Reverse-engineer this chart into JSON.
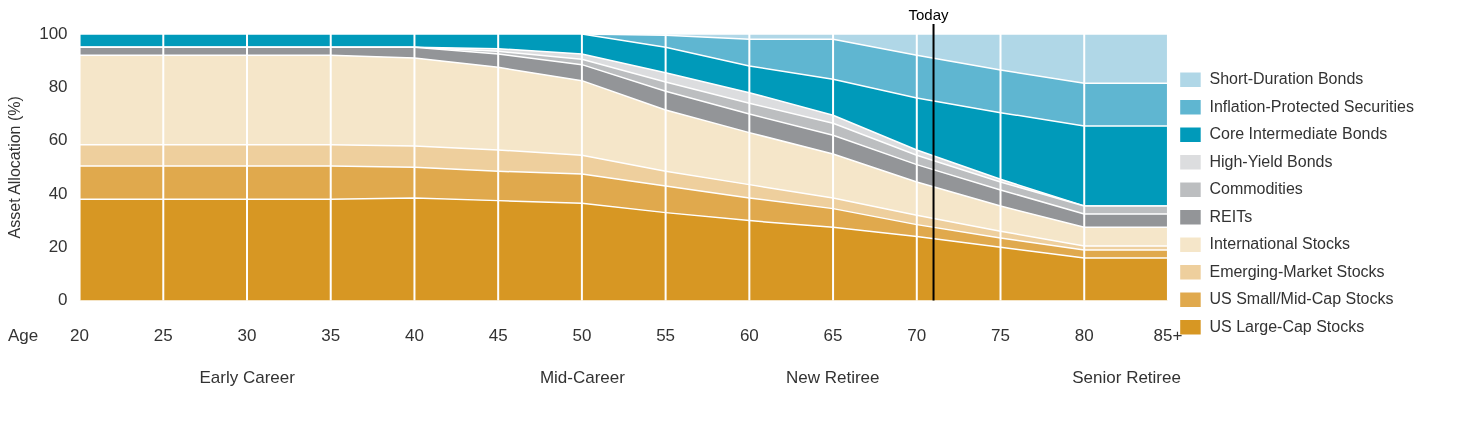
{
  "chart_data": {
    "type": "area",
    "stacked": true,
    "xlabel": "Age",
    "ylabel": "Asset Allocation (%)",
    "x": [
      20,
      25,
      30,
      35,
      40,
      45,
      50,
      55,
      60,
      65,
      70,
      75,
      80,
      85
    ],
    "xlim": [
      20,
      85
    ],
    "xticks": [
      20,
      25,
      30,
      35,
      40,
      45,
      50,
      55,
      60,
      65,
      70,
      75,
      80,
      {
        "value": 85,
        "label": "85+"
      }
    ],
    "ylim": [
      0,
      100
    ],
    "yticks": [
      0,
      20,
      40,
      60,
      80,
      100
    ],
    "grid": "x",
    "legend": "right",
    "series": [
      {
        "name": "US Large-Cap Stocks",
        "color": "#d79723",
        "values": [
          38,
          38,
          38,
          38,
          38.5,
          37.5,
          36.5,
          33,
          30,
          27.5,
          24,
          20,
          16,
          16
        ]
      },
      {
        "name": "US Small/Mid-Cap Stocks",
        "color": "#e0a94d",
        "values": [
          12.5,
          12.5,
          12.5,
          12.5,
          11.5,
          11,
          11,
          10,
          8.5,
          7,
          4.5,
          3.5,
          3,
          3
        ]
      },
      {
        "name": "Emerging-Market Stocks",
        "color": "#eecf9d",
        "values": [
          8,
          8,
          8,
          8,
          8,
          8,
          7,
          5.5,
          5,
          4,
          3.5,
          2.5,
          1.5,
          1.5
        ]
      },
      {
        "name": "International Stocks",
        "color": "#f5e6c9",
        "values": [
          33.5,
          33.5,
          33.5,
          33.5,
          33,
          31,
          28,
          23,
          19.5,
          16.5,
          12.5,
          9.5,
          7,
          7
        ]
      },
      {
        "name": "REITs",
        "color": "#939598",
        "values": [
          3,
          3,
          3,
          3,
          4,
          5,
          6,
          7,
          7,
          7,
          6.5,
          6,
          5,
          5
        ]
      },
      {
        "name": "Commodities",
        "color": "#bcbec0",
        "values": [
          0,
          0,
          0,
          0,
          0,
          1,
          2,
          3.5,
          4,
          4.5,
          3.5,
          3,
          3,
          3
        ]
      },
      {
        "name": "High-Yield Bonds",
        "color": "#dcdddf",
        "values": [
          0,
          0,
          0,
          0,
          0,
          1,
          2,
          3.5,
          4,
          3,
          2,
          1,
          0,
          0
        ]
      },
      {
        "name": "Core Intermediate Bonds",
        "color": "#009aba",
        "values": [
          5,
          5,
          5,
          5,
          5,
          5.5,
          7.5,
          9.5,
          10,
          13.5,
          19.5,
          25,
          30,
          30
        ]
      },
      {
        "name": "Inflation-Protected Securities",
        "color": "#5fb6d1",
        "values": [
          0,
          0,
          0,
          0,
          0,
          0,
          0,
          4.5,
          10,
          15,
          16,
          16,
          16,
          16
        ]
      },
      {
        "name": "Short-Duration Bonds",
        "color": "#b0d7e7",
        "values": [
          0,
          0,
          0,
          0,
          0,
          0,
          0,
          0.5,
          2,
          2,
          8,
          13.5,
          18.5,
          18.5
        ]
      }
    ],
    "ref_lines": [
      {
        "axis": "x",
        "value": 71,
        "label": "Today",
        "color": "#000000"
      }
    ],
    "annotations": [
      "Early Career",
      "Mid-Career",
      "New Retiree",
      "Senior Retiree"
    ]
  }
}
